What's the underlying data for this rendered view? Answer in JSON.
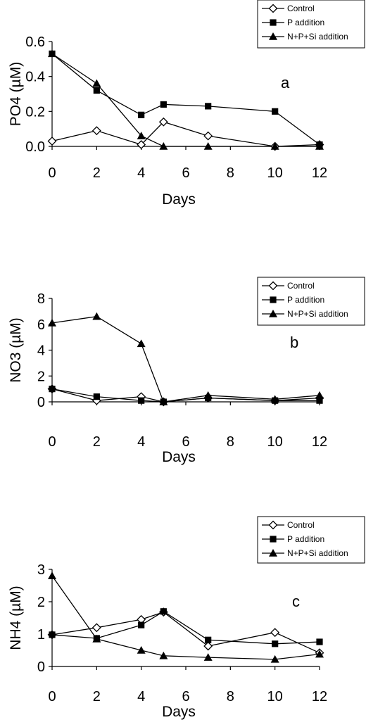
{
  "chart_data": [
    {
      "type": "line",
      "panel_label": "a",
      "xlabel": "Days",
      "ylabel": "PO4 (µM)",
      "xlim": [
        0,
        12
      ],
      "ylim": [
        0,
        0.6
      ],
      "xticks": [
        "0",
        "2",
        "4",
        "6",
        "8",
        "10",
        "12"
      ],
      "yticks": [
        "0.0",
        "0.2",
        "0.4",
        "0.6"
      ],
      "grid": false,
      "legend_position": "top-right",
      "series": [
        {
          "name": "Control",
          "marker": "open-diamond",
          "x": [
            0,
            2,
            4,
            5,
            7,
            10,
            12
          ],
          "y": [
            0.03,
            0.09,
            0.01,
            0.14,
            0.06,
            0.0,
            0.01
          ]
        },
        {
          "name": "P addition",
          "marker": "filled-square",
          "x": [
            0,
            2,
            4,
            5,
            7,
            10,
            12
          ],
          "y": [
            0.53,
            0.32,
            0.18,
            0.24,
            0.23,
            0.2,
            0.01
          ]
        },
        {
          "name": "N+P+Si addition",
          "marker": "filled-triangle",
          "x": [
            0,
            2,
            4,
            5,
            7,
            10,
            12
          ],
          "y": [
            0.53,
            0.36,
            0.06,
            0.0,
            0.0,
            0.0,
            0.0
          ]
        }
      ]
    },
    {
      "type": "line",
      "panel_label": "b",
      "xlabel": "Days",
      "ylabel": "NO3 (µM)",
      "xlim": [
        0,
        12
      ],
      "ylim": [
        0,
        8
      ],
      "xticks": [
        "0",
        "2",
        "4",
        "6",
        "8",
        "10",
        "12"
      ],
      "yticks": [
        "0",
        "2",
        "4",
        "6",
        "8"
      ],
      "grid": false,
      "legend_position": "top-right",
      "series": [
        {
          "name": "Control",
          "marker": "open-diamond",
          "x": [
            0,
            2,
            4,
            5,
            7,
            10,
            12
          ],
          "y": [
            1.0,
            0.1,
            0.4,
            0.0,
            0.3,
            0.1,
            0.3
          ]
        },
        {
          "name": "P addition",
          "marker": "filled-square",
          "x": [
            0,
            2,
            4,
            5,
            7,
            10,
            12
          ],
          "y": [
            1.0,
            0.4,
            0.1,
            0.0,
            0.3,
            0.1,
            0.1
          ]
        },
        {
          "name": "N+P+Si addition",
          "marker": "filled-triangle",
          "x": [
            0,
            2,
            4,
            5,
            7,
            10,
            12
          ],
          "y": [
            6.1,
            6.6,
            4.5,
            0.0,
            0.5,
            0.2,
            0.5
          ]
        }
      ]
    },
    {
      "type": "line",
      "panel_label": "c",
      "xlabel": "Days",
      "ylabel": "NH4 (µM)",
      "xlim": [
        0,
        12
      ],
      "ylim": [
        0,
        3
      ],
      "xticks": [
        "0",
        "2",
        "4",
        "6",
        "8",
        "10",
        "12"
      ],
      "yticks": [
        "0",
        "1",
        "2",
        "3"
      ],
      "grid": false,
      "legend_position": "top-right",
      "series": [
        {
          "name": "Control",
          "marker": "open-diamond",
          "x": [
            0,
            2,
            4,
            5,
            7,
            10,
            12
          ],
          "y": [
            0.98,
            1.2,
            1.45,
            1.68,
            0.63,
            1.05,
            0.42
          ]
        },
        {
          "name": "P addition",
          "marker": "filled-square",
          "x": [
            0,
            2,
            4,
            5,
            7,
            10,
            12
          ],
          "y": [
            0.98,
            0.87,
            1.28,
            1.7,
            0.82,
            0.7,
            0.76
          ]
        },
        {
          "name": "N+P+Si addition",
          "marker": "filled-triangle",
          "x": [
            0,
            2,
            4,
            5,
            7,
            10,
            12
          ],
          "y": [
            2.8,
            0.85,
            0.5,
            0.33,
            0.28,
            0.22,
            0.38
          ]
        }
      ]
    }
  ]
}
